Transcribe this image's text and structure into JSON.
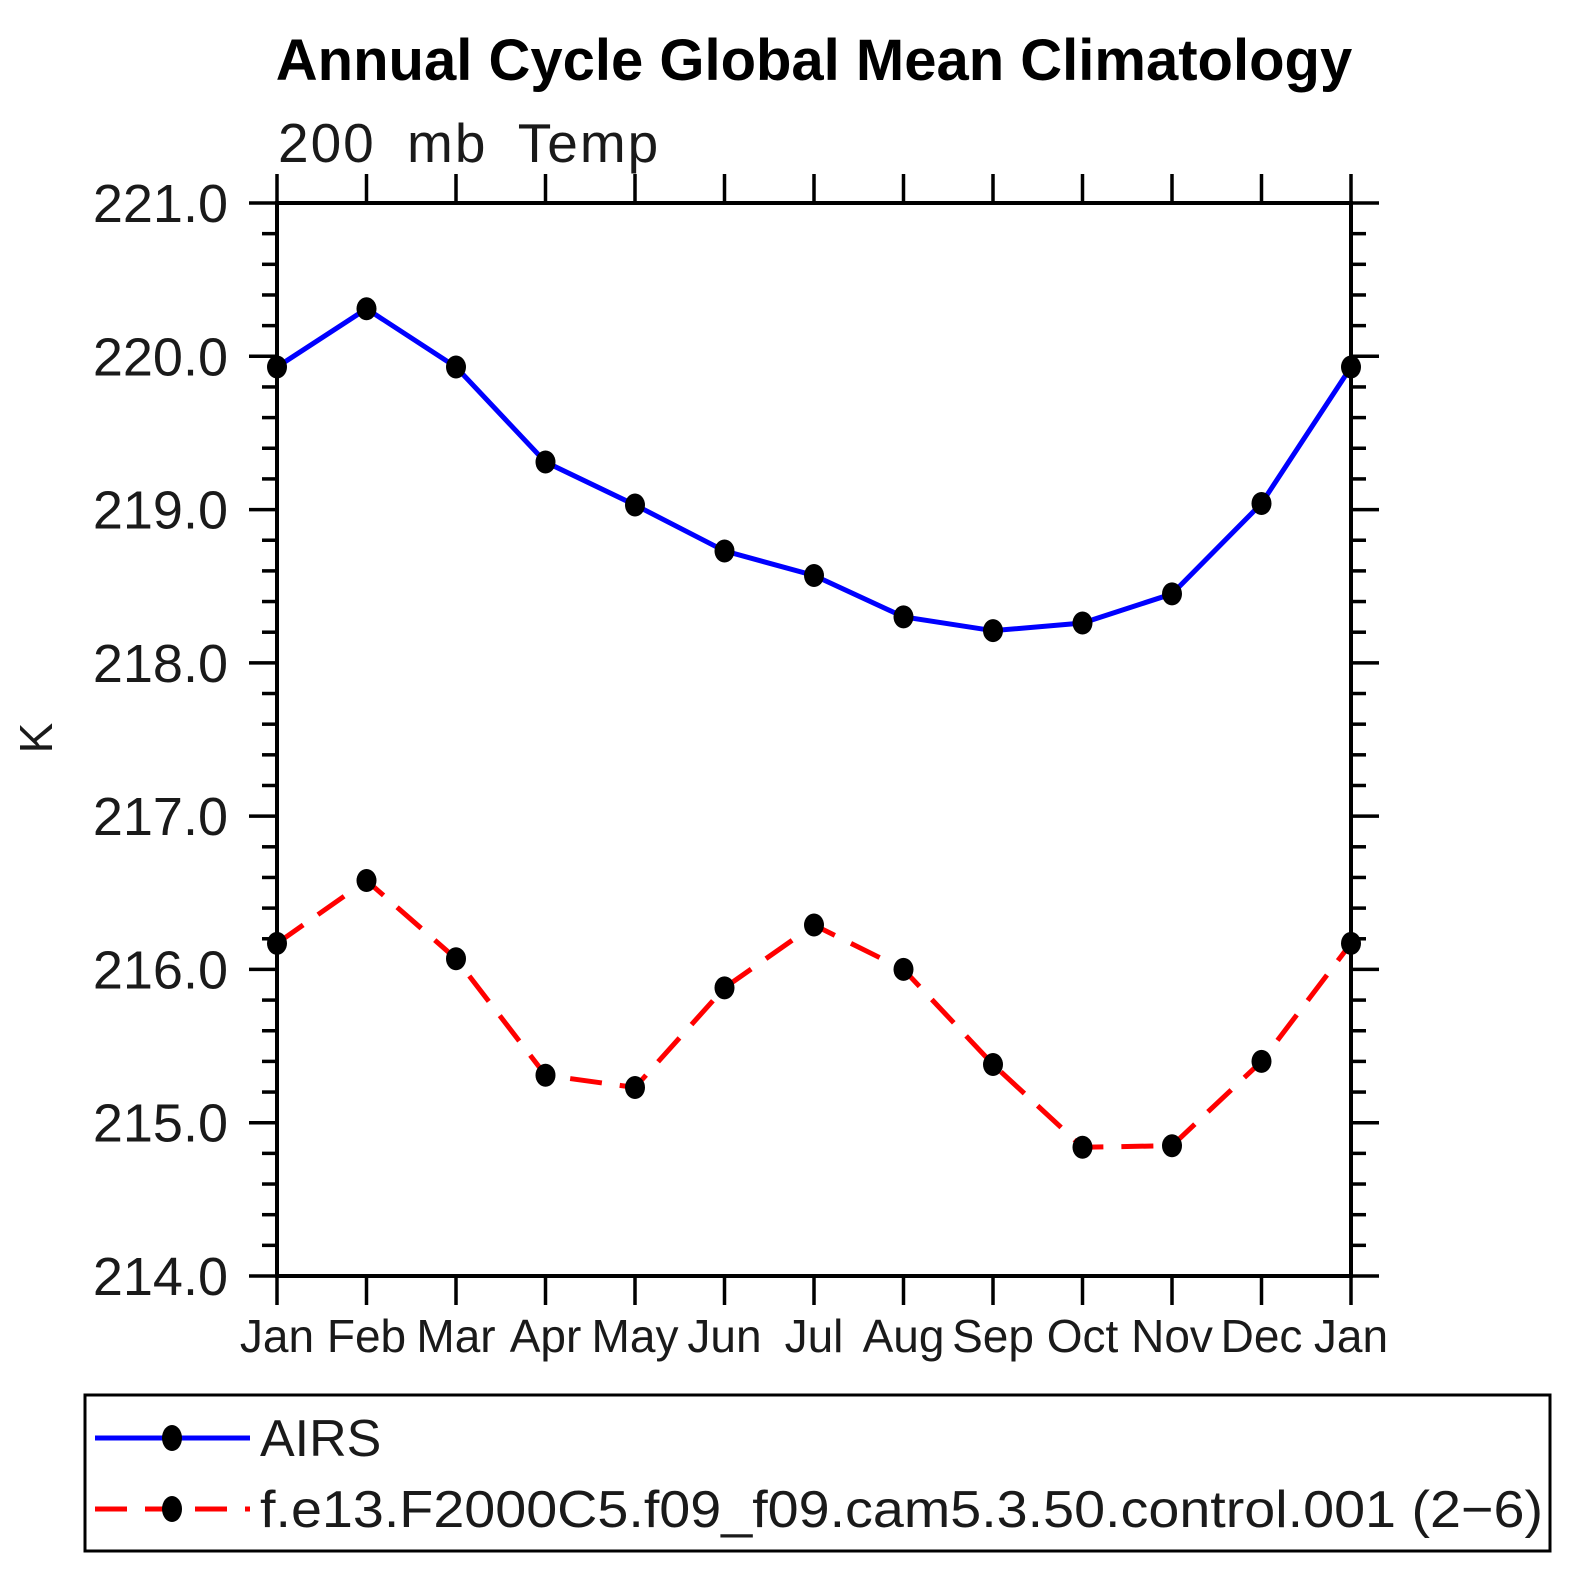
{
  "title": "Annual Cycle Global Mean Climatology",
  "subtitle": "200 mb Temp",
  "ylabel": "K",
  "colors": {
    "background": "#ffffff",
    "axis": "#000000",
    "marker": "#000000",
    "airs_line": "#0000ff",
    "model_line": "#ff0000"
  },
  "chart_data": {
    "type": "line",
    "title": "Annual Cycle Global Mean Climatology",
    "subtitle": "200 mb Temp",
    "ylabel": "K",
    "ylim": [
      214.0,
      221.0
    ],
    "ytick_step": 1.0,
    "ytick_minor_step": 0.2,
    "ytick_labels": [
      "214.0",
      "215.0",
      "216.0",
      "217.0",
      "218.0",
      "219.0",
      "220.0",
      "221.0"
    ],
    "x_categories": [
      "Jan",
      "Feb",
      "Mar",
      "Apr",
      "May",
      "Jun",
      "Jul",
      "Aug",
      "Sep",
      "Oct",
      "Nov",
      "Dec",
      "Jan"
    ],
    "grid": false,
    "legend_position": "bottom",
    "series": [
      {
        "name": "AIRS",
        "color": "#0000ff",
        "style": "solid",
        "marker": "filled-circle",
        "marker_color": "#000000",
        "values": [
          219.93,
          220.31,
          219.93,
          219.31,
          219.03,
          218.73,
          218.57,
          218.3,
          218.21,
          218.26,
          218.45,
          219.04,
          219.93
        ]
      },
      {
        "name": "f.e13.F2000C5.f09_f09.cam5.3.50.control.001 (2−6)",
        "color": "#ff0000",
        "style": "dashed",
        "marker": "filled-circle",
        "marker_color": "#000000",
        "values": [
          216.17,
          216.58,
          216.07,
          215.31,
          215.23,
          215.88,
          216.29,
          216.0,
          215.38,
          214.84,
          214.85,
          215.4,
          216.17
        ]
      }
    ]
  }
}
